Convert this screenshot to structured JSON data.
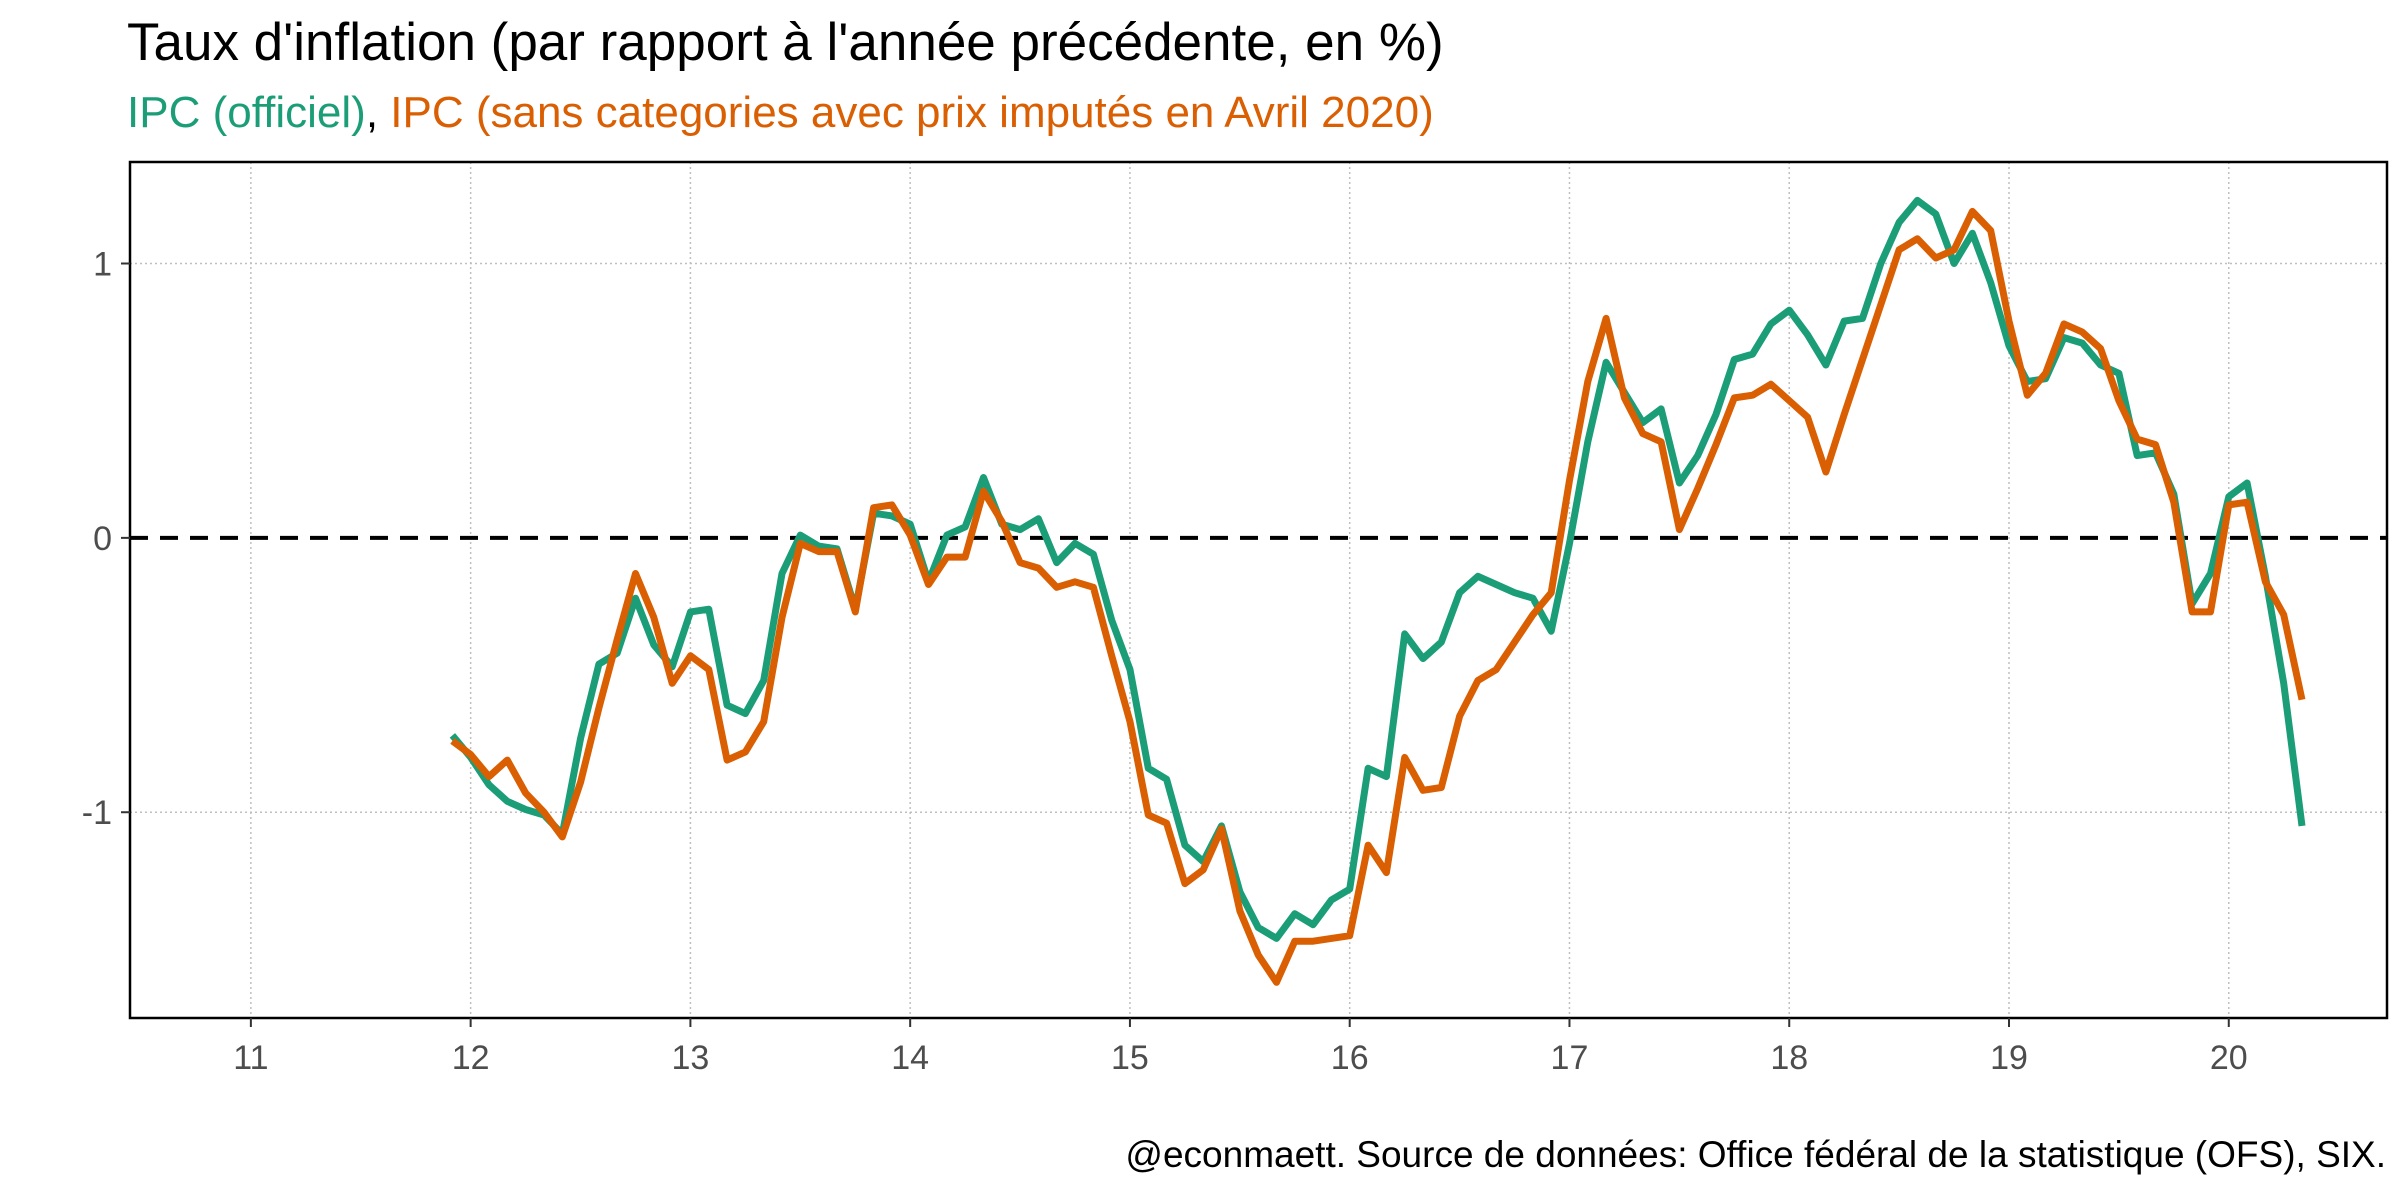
{
  "title": "Taux d'inflation (par rapport à l'année précédente, en %)",
  "subtitle": {
    "series_a": "IPC (officiel)",
    "separator": ", ",
    "series_b": "IPC (sans categories avec prix imputés en Avril 2020)"
  },
  "caption": "@econmaett. Source de données: Office fédéral de la statistique (OFS), SIX.",
  "colors": {
    "official": "#1b9e77",
    "adjusted": "#d95f02",
    "zero_line": "#000000",
    "grid": "#bfbfbf"
  },
  "chart_data": {
    "type": "line",
    "xlim": [
      2010.45,
      2020.72
    ],
    "ylim": [
      -1.75,
      1.37
    ],
    "x_ticks": [
      2011,
      2012,
      2013,
      2014,
      2015,
      2016,
      2017,
      2018,
      2019,
      2020
    ],
    "x_tick_labels": [
      "11",
      "12",
      "13",
      "14",
      "15",
      "16",
      "17",
      "18",
      "19",
      "20"
    ],
    "y_ticks": [
      -1,
      0,
      1
    ],
    "y_tick_labels": [
      "-1",
      "0",
      "1"
    ],
    "reference_line": {
      "y": 0,
      "style": "dashed"
    },
    "grid": true,
    "x_start": 2011.917,
    "x_step": 0.08333,
    "series": [
      {
        "name": "IPC (officiel)",
        "color": "#1b9e77",
        "values": [
          -0.72,
          -0.8,
          -0.9,
          -0.96,
          -0.99,
          -1.01,
          -1.08,
          -0.73,
          -0.46,
          -0.42,
          -0.22,
          -0.39,
          -0.47,
          -0.27,
          -0.26,
          -0.61,
          -0.64,
          -0.52,
          -0.13,
          0.01,
          -0.03,
          -0.04,
          -0.26,
          0.09,
          0.08,
          0.05,
          -0.16,
          0.01,
          0.04,
          0.22,
          0.05,
          0.03,
          0.07,
          -0.09,
          -0.02,
          -0.06,
          -0.3,
          -0.48,
          -0.84,
          -0.88,
          -1.12,
          -1.18,
          -1.05,
          -1.29,
          -1.42,
          -1.46,
          -1.37,
          -1.41,
          -1.32,
          -1.28,
          -0.84,
          -0.87,
          -0.35,
          -0.44,
          -0.38,
          -0.2,
          -0.14,
          -0.17,
          -0.2,
          -0.22,
          -0.34,
          -0.02,
          0.35,
          0.64,
          0.53,
          0.42,
          0.47,
          0.2,
          0.3,
          0.45,
          0.65,
          0.67,
          0.78,
          0.83,
          0.74,
          0.63,
          0.79,
          0.8,
          1.0,
          1.15,
          1.23,
          1.18,
          1.0,
          1.11,
          0.93,
          0.7,
          0.57,
          0.58,
          0.73,
          0.71,
          0.63,
          0.6,
          0.3,
          0.31,
          0.16,
          -0.24,
          -0.13,
          0.15,
          0.2,
          -0.14,
          -0.53,
          -1.05
        ]
      },
      {
        "name": "IPC (sans categories avec prix imputés en Avril 2020)",
        "color": "#d95f02",
        "values": [
          -0.74,
          -0.79,
          -0.87,
          -0.81,
          -0.93,
          -1.0,
          -1.09,
          -0.89,
          -0.62,
          -0.37,
          -0.13,
          -0.29,
          -0.53,
          -0.43,
          -0.48,
          -0.81,
          -0.78,
          -0.67,
          -0.29,
          -0.02,
          -0.05,
          -0.05,
          -0.27,
          0.11,
          0.12,
          0.01,
          -0.17,
          -0.07,
          -0.07,
          0.17,
          0.06,
          -0.09,
          -0.11,
          -0.18,
          -0.16,
          -0.18,
          -0.43,
          -0.67,
          -1.01,
          -1.04,
          -1.26,
          -1.21,
          -1.06,
          -1.36,
          -1.52,
          -1.62,
          -1.47,
          -1.47,
          -1.46,
          -1.45,
          -1.12,
          -1.22,
          -0.8,
          -0.92,
          -0.91,
          -0.65,
          -0.52,
          -0.48,
          -0.38,
          -0.28,
          -0.2,
          0.21,
          0.57,
          0.8,
          0.51,
          0.38,
          0.35,
          0.03,
          0.18,
          0.34,
          0.51,
          0.52,
          0.56,
          0.5,
          0.44,
          0.24,
          0.45,
          0.65,
          0.85,
          1.05,
          1.09,
          1.02,
          1.05,
          1.19,
          1.12,
          0.79,
          0.52,
          0.6,
          0.78,
          0.75,
          0.69,
          0.5,
          0.36,
          0.34,
          0.13,
          -0.27,
          -0.27,
          0.12,
          0.13,
          -0.16,
          -0.28,
          -0.59
        ]
      }
    ]
  }
}
